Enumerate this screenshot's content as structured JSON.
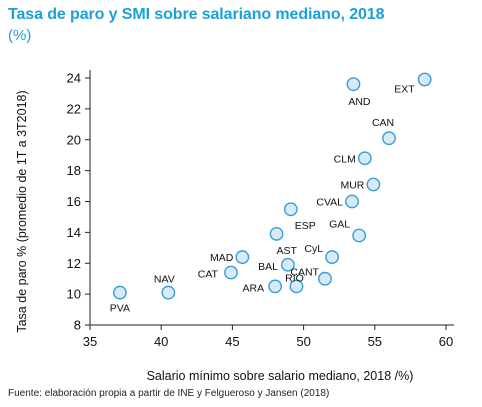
{
  "header": {
    "title": "Tasa de paro y SMI sobre salariano mediano, 2018",
    "subtitle": "(%)"
  },
  "footer": {
    "source": "Fuente: elaboración propia a partir de INE y Felgueroso y Jansen (2018)"
  },
  "colors": {
    "accent": "#1aa1d9",
    "marker_fill": "#d6eaf8",
    "marker_stroke": "#3a9bd5"
  },
  "chart_data": {
    "type": "scatter",
    "xlabel": "Salario mínimo sobre salario mediano, 2018 /%)",
    "ylabel": "Tasa de paro % (promedio de 1T a 3T2018)",
    "xlim": [
      35,
      60
    ],
    "ylim": [
      8,
      24
    ],
    "xticks": [
      35,
      40,
      45,
      50,
      55,
      60
    ],
    "yticks": [
      8,
      10,
      12,
      14,
      16,
      18,
      20,
      22,
      24
    ],
    "grid": false,
    "legend": "none",
    "points": [
      {
        "label": "EXT",
        "x": 58.5,
        "y": 23.9
      },
      {
        "label": "AND",
        "x": 53.5,
        "y": 23.6
      },
      {
        "label": "CAN",
        "x": 56.0,
        "y": 20.1
      },
      {
        "label": "CLM",
        "x": 54.3,
        "y": 18.8
      },
      {
        "label": "MUR",
        "x": 54.9,
        "y": 17.1
      },
      {
        "label": "CVAL",
        "x": 53.4,
        "y": 16.0
      },
      {
        "label": "ESP",
        "x": 49.1,
        "y": 15.5
      },
      {
        "label": "GAL",
        "x": 53.9,
        "y": 13.8
      },
      {
        "label": "AST",
        "x": 48.1,
        "y": 13.9
      },
      {
        "label": "CyL",
        "x": 52.0,
        "y": 12.4
      },
      {
        "label": "MAD",
        "x": 45.7,
        "y": 12.4
      },
      {
        "label": "BAL",
        "x": 48.9,
        "y": 11.9
      },
      {
        "label": "CAT",
        "x": 44.9,
        "y": 11.4
      },
      {
        "label": "CANT",
        "x": 51.5,
        "y": 11.0
      },
      {
        "label": "RIO",
        "x": 49.5,
        "y": 10.5
      },
      {
        "label": "ARA",
        "x": 48.0,
        "y": 10.5
      },
      {
        "label": "NAV",
        "x": 40.5,
        "y": 10.1
      },
      {
        "label": "PVA",
        "x": 37.1,
        "y": 10.1
      }
    ]
  }
}
